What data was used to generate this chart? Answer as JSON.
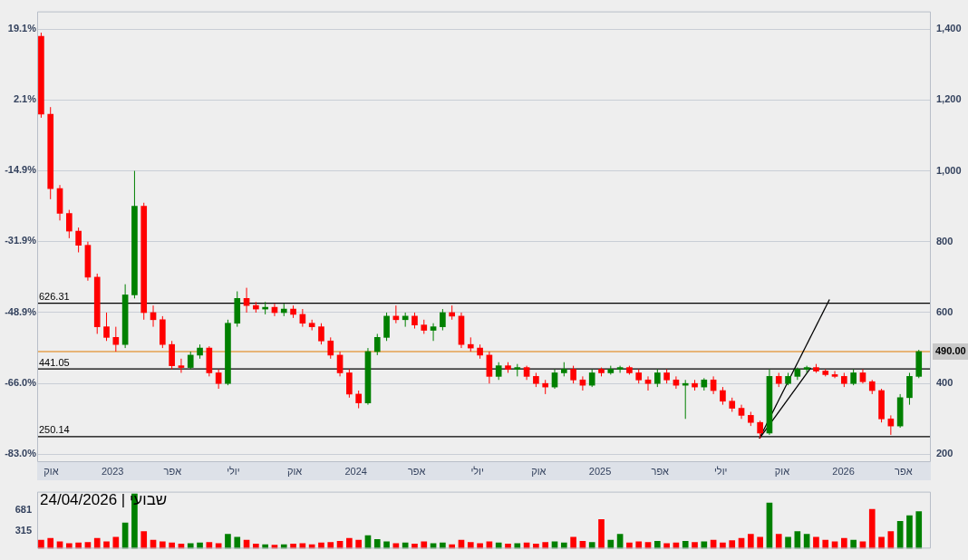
{
  "chart_data": [
    {
      "type": "candlestick",
      "x": [
        "2022-09-16",
        "2022-09-30",
        "2022-10-14",
        "2022-10-28",
        "2022-11-11",
        "2022-11-25",
        "2022-12-09",
        "2022-12-23",
        "2023-01-06",
        "2023-01-20",
        "2023-02-03",
        "2023-02-17",
        "2023-03-03",
        "2023-03-17",
        "2023-03-31",
        "2023-04-14",
        "2023-04-28",
        "2023-05-12",
        "2023-05-26",
        "2023-06-09",
        "2023-06-23",
        "2023-07-07",
        "2023-07-21",
        "2023-08-04",
        "2023-08-18",
        "2023-09-01",
        "2023-09-15",
        "2023-09-29",
        "2023-10-13",
        "2023-10-27",
        "2023-11-10",
        "2023-11-24",
        "2023-12-08",
        "2023-12-22",
        "2024-01-05",
        "2024-01-19",
        "2024-02-02",
        "2024-02-16",
        "2024-03-01",
        "2024-03-15",
        "2024-03-29",
        "2024-04-12",
        "2024-04-26",
        "2024-05-10",
        "2024-05-24",
        "2024-06-07",
        "2024-06-21",
        "2024-07-05",
        "2024-07-19",
        "2024-08-02",
        "2024-08-16",
        "2024-08-30",
        "2024-09-13",
        "2024-09-27",
        "2024-10-11",
        "2024-10-25",
        "2024-11-08",
        "2024-11-22",
        "2024-12-06",
        "2024-12-20",
        "2025-01-03",
        "2025-01-17",
        "2025-01-31",
        "2025-02-14",
        "2025-02-28",
        "2025-03-14",
        "2025-03-28",
        "2025-04-11",
        "2025-04-25",
        "2025-05-09",
        "2025-05-23",
        "2025-06-06",
        "2025-06-20",
        "2025-07-04",
        "2025-07-18",
        "2025-08-01",
        "2025-08-15",
        "2025-08-29",
        "2025-09-12",
        "2025-09-26",
        "2025-10-10",
        "2025-10-24",
        "2025-11-07",
        "2025-11-21",
        "2025-12-05",
        "2025-12-19",
        "2026-01-02",
        "2026-01-16",
        "2026-01-30",
        "2026-02-13",
        "2026-02-27",
        "2026-03-13",
        "2026-03-27",
        "2026-04-10",
        "2026-04-24"
      ],
      "ohlc": [
        [
          1380,
          1390,
          1150,
          1160
        ],
        [
          1160,
          1180,
          920,
          950
        ],
        [
          950,
          960,
          860,
          880
        ],
        [
          880,
          890,
          810,
          830
        ],
        [
          830,
          840,
          770,
          790
        ],
        [
          790,
          800,
          690,
          700
        ],
        [
          700,
          710,
          540,
          560
        ],
        [
          560,
          600,
          520,
          530
        ],
        [
          530,
          560,
          490,
          510
        ],
        [
          510,
          680,
          500,
          650
        ],
        [
          650,
          1000,
          640,
          900
        ],
        [
          900,
          910,
          580,
          600
        ],
        [
          600,
          620,
          560,
          580
        ],
        [
          580,
          590,
          500,
          510
        ],
        [
          510,
          520,
          440,
          450
        ],
        [
          450,
          470,
          430,
          445
        ],
        [
          445,
          490,
          440,
          480
        ],
        [
          480,
          510,
          470,
          500
        ],
        [
          500,
          505,
          420,
          430
        ],
        [
          430,
          440,
          385,
          400
        ],
        [
          400,
          580,
          395,
          570
        ],
        [
          570,
          660,
          560,
          640
        ],
        [
          640,
          670,
          600,
          620
        ],
        [
          620,
          630,
          600,
          610
        ],
        [
          610,
          630,
          595,
          615
        ],
        [
          615,
          625,
          590,
          600
        ],
        [
          600,
          625,
          590,
          610
        ],
        [
          610,
          620,
          585,
          595
        ],
        [
          595,
          610,
          560,
          570
        ],
        [
          570,
          580,
          550,
          560
        ],
        [
          560,
          570,
          510,
          520
        ],
        [
          520,
          530,
          470,
          480
        ],
        [
          480,
          490,
          420,
          430
        ],
        [
          430,
          440,
          360,
          370
        ],
        [
          370,
          380,
          330,
          345
        ],
        [
          345,
          500,
          340,
          490
        ],
        [
          490,
          540,
          480,
          530
        ],
        [
          530,
          600,
          520,
          590
        ],
        [
          590,
          620,
          570,
          580
        ],
        [
          580,
          600,
          560,
          590
        ],
        [
          590,
          600,
          555,
          565
        ],
        [
          565,
          580,
          540,
          550
        ],
        [
          550,
          570,
          520,
          560
        ],
        [
          560,
          610,
          550,
          600
        ],
        [
          600,
          620,
          580,
          590
        ],
        [
          590,
          600,
          500,
          510
        ],
        [
          510,
          530,
          490,
          500
        ],
        [
          500,
          510,
          470,
          480
        ],
        [
          480,
          490,
          400,
          420
        ],
        [
          420,
          460,
          410,
          450
        ],
        [
          450,
          460,
          430,
          440
        ],
        [
          440,
          455,
          420,
          445
        ],
        [
          445,
          450,
          410,
          420
        ],
        [
          420,
          430,
          390,
          400
        ],
        [
          400,
          410,
          370,
          390
        ],
        [
          390,
          440,
          385,
          430
        ],
        [
          430,
          460,
          420,
          440
        ],
        [
          440,
          450,
          400,
          410
        ],
        [
          410,
          420,
          380,
          395
        ],
        [
          395,
          440,
          390,
          430
        ],
        [
          440,
          445,
          420,
          430
        ],
        [
          430,
          450,
          425,
          440
        ],
        [
          440,
          450,
          430,
          445
        ],
        [
          445,
          450,
          425,
          430
        ],
        [
          430,
          440,
          400,
          410
        ],
        [
          410,
          420,
          380,
          400
        ],
        [
          400,
          440,
          390,
          430
        ],
        [
          430,
          440,
          400,
          410
        ],
        [
          410,
          420,
          385,
          395
        ],
        [
          395,
          410,
          300,
          400
        ],
        [
          400,
          410,
          380,
          390
        ],
        [
          390,
          415,
          380,
          410
        ],
        [
          410,
          420,
          370,
          380
        ],
        [
          380,
          390,
          340,
          350
        ],
        [
          350,
          360,
          320,
          330
        ],
        [
          330,
          340,
          300,
          310
        ],
        [
          310,
          320,
          280,
          290
        ],
        [
          290,
          295,
          245,
          260
        ],
        [
          260,
          440,
          255,
          420
        ],
        [
          420,
          430,
          390,
          400
        ],
        [
          400,
          430,
          395,
          420
        ],
        [
          420,
          445,
          410,
          440
        ],
        [
          440,
          450,
          430,
          445
        ],
        [
          445,
          455,
          430,
          435
        ],
        [
          435,
          440,
          420,
          425
        ],
        [
          425,
          435,
          415,
          420
        ],
        [
          420,
          430,
          390,
          400
        ],
        [
          400,
          440,
          395,
          430
        ],
        [
          430,
          440,
          400,
          405
        ],
        [
          405,
          410,
          370,
          380
        ],
        [
          380,
          385,
          290,
          300
        ],
        [
          300,
          310,
          255,
          280
        ],
        [
          280,
          370,
          275,
          360
        ],
        [
          360,
          430,
          340,
          420
        ],
        [
          420,
          495,
          415,
          490
        ]
      ],
      "colors": [
        "#ff0000",
        "#ff0000",
        "#ff0000",
        "#ff0000",
        "#ff0000",
        "#ff0000",
        "#ff0000",
        "#ff0000",
        "#ff0000",
        "#008000",
        "#008000",
        "#ff0000",
        "#ff0000",
        "#ff0000",
        "#ff0000",
        "#ff0000",
        "#008000",
        "#008000",
        "#ff0000",
        "#ff0000",
        "#008000",
        "#008000",
        "#ff0000",
        "#ff0000",
        "#008000",
        "#ff0000",
        "#008000",
        "#ff0000",
        "#ff0000",
        "#ff0000",
        "#ff0000",
        "#ff0000",
        "#ff0000",
        "#ff0000",
        "#ff0000",
        "#008000",
        "#008000",
        "#008000",
        "#ff0000",
        "#008000",
        "#ff0000",
        "#ff0000",
        "#008000",
        "#008000",
        "#ff0000",
        "#ff0000",
        "#ff0000",
        "#ff0000",
        "#ff0000",
        "#008000",
        "#ff0000",
        "#008000",
        "#ff0000",
        "#ff0000",
        "#ff0000",
        "#008000",
        "#008000",
        "#ff0000",
        "#ff0000",
        "#008000",
        "#ff0000",
        "#008000",
        "#008000",
        "#ff0000",
        "#ff0000",
        "#ff0000",
        "#008000",
        "#ff0000",
        "#ff0000",
        "#008000",
        "#ff0000",
        "#008000",
        "#ff0000",
        "#ff0000",
        "#ff0000",
        "#ff0000",
        "#ff0000",
        "#ff0000",
        "#008000",
        "#ff0000",
        "#008000",
        "#008000",
        "#008000",
        "#ff0000",
        "#ff0000",
        "#ff0000",
        "#ff0000",
        "#008000",
        "#ff0000",
        "#ff0000",
        "#ff0000",
        "#ff0000",
        "#008000",
        "#008000",
        "#008000"
      ],
      "series": [
        {
          "type": "line",
          "color": "#000000",
          "x": [
            "2025-08-28",
            "2025-12-11"
          ],
          "values": [
            245,
            637
          ]
        },
        {
          "type": "line",
          "color": "#000000",
          "x": [
            "2025-08-28",
            "2025-11-13"
          ],
          "values": [
            245,
            444
          ]
        }
      ],
      "marker": "none",
      "xlim": [
        "2022-09-10",
        "2026-05-12"
      ],
      "xticks": [
        {
          "value": "2022-10-01",
          "label": "אוק"
        },
        {
          "value": "2023-01-01",
          "label": "2023"
        },
        {
          "value": "2023-04-01",
          "label": "אפר"
        },
        {
          "value": "2023-07-01",
          "label": "יולי"
        },
        {
          "value": "2023-10-01",
          "label": "אוק"
        },
        {
          "value": "2024-01-01",
          "label": "2024"
        },
        {
          "value": "2024-04-01",
          "label": "אפר"
        },
        {
          "value": "2024-07-01",
          "label": "יולי"
        },
        {
          "value": "2024-10-01",
          "label": "אוק"
        },
        {
          "value": "2025-01-01",
          "label": "2025"
        },
        {
          "value": "2025-04-01",
          "label": "אפר"
        },
        {
          "value": "2025-07-01",
          "label": "יולי"
        },
        {
          "value": "2025-10-01",
          "label": "אוק"
        },
        {
          "value": "2026-01-01",
          "label": "2026"
        },
        {
          "value": "2026-04-01",
          "label": "אפר"
        }
      ],
      "ylim": [
        178,
        1450
      ],
      "yticks": [
        200,
        400,
        600,
        800,
        {
          "value": 1000,
          "label": "1,000"
        },
        {
          "value": 1200,
          "label": "1,200"
        },
        {
          "value": 1400,
          "label": "1,400"
        }
      ],
      "y2lim": [
        -84.9,
        23.3
      ],
      "y2ticks": [
        {
          "value": -83.0,
          "label": "-83.0%"
        },
        {
          "value": -66.0,
          "label": "-66.0%"
        },
        {
          "value": -48.9,
          "label": "-48.9%"
        },
        {
          "value": -31.9,
          "label": "-31.9%"
        },
        {
          "value": -14.9,
          "label": "-14.9%"
        },
        {
          "value": 2.1,
          "label": "2.1%"
        },
        {
          "value": 19.1,
          "label": "19.1%"
        }
      ],
      "ref_lines": [
        {
          "axis": "y",
          "value": 626.31,
          "label": "626.31"
        },
        {
          "axis": "y",
          "value": 441.05,
          "label": "441.05"
        },
        {
          "axis": "y",
          "value": 250.14,
          "label": "250.14"
        },
        {
          "axis": "y",
          "value": 490,
          "label": "490.00",
          "color": "#e07b00"
        }
      ],
      "grid": "y",
      "legend": false
    },
    {
      "type": "bar",
      "title": "שבועי | 24/04/2026",
      "x": [
        "2022-09-16",
        "2022-09-30",
        "2022-10-14",
        "2022-10-28",
        "2022-11-11",
        "2022-11-25",
        "2022-12-09",
        "2022-12-23",
        "2023-01-06",
        "2023-01-20",
        "2023-02-03",
        "2023-02-17",
        "2023-03-03",
        "2023-03-17",
        "2023-03-31",
        "2023-04-14",
        "2023-04-28",
        "2023-05-12",
        "2023-05-26",
        "2023-06-09",
        "2023-06-23",
        "2023-07-07",
        "2023-07-21",
        "2023-08-04",
        "2023-08-18",
        "2023-09-01",
        "2023-09-15",
        "2023-09-29",
        "2023-10-13",
        "2023-10-27",
        "2023-11-10",
        "2023-11-24",
        "2023-12-08",
        "2023-12-22",
        "2024-01-05",
        "2024-01-19",
        "2024-02-02",
        "2024-02-16",
        "2024-03-01",
        "2024-03-15",
        "2024-03-29",
        "2024-04-12",
        "2024-04-26",
        "2024-05-10",
        "2024-05-24",
        "2024-06-07",
        "2024-06-21",
        "2024-07-05",
        "2024-07-19",
        "2024-08-02",
        "2024-08-16",
        "2024-08-30",
        "2024-09-13",
        "2024-09-27",
        "2024-10-11",
        "2024-10-25",
        "2024-11-08",
        "2024-11-22",
        "2024-12-06",
        "2024-12-20",
        "2025-01-03",
        "2025-01-17",
        "2025-01-31",
        "2025-02-14",
        "2025-02-28",
        "2025-03-14",
        "2025-03-28",
        "2025-04-11",
        "2025-04-25",
        "2025-05-09",
        "2025-05-23",
        "2025-06-06",
        "2025-06-20",
        "2025-07-04",
        "2025-07-18",
        "2025-08-01",
        "2025-08-15",
        "2025-08-29",
        "2025-09-12",
        "2025-09-26",
        "2025-10-10",
        "2025-10-24",
        "2025-11-07",
        "2025-11-21",
        "2025-12-05",
        "2025-12-19",
        "2026-01-02",
        "2026-01-16",
        "2026-01-30",
        "2026-02-13",
        "2026-02-27",
        "2026-03-13",
        "2026-03-27",
        "2026-04-10",
        "2026-04-24"
      ],
      "values": [
        150,
        180,
        120,
        90,
        100,
        110,
        180,
        120,
        200,
        450,
        960,
        300,
        150,
        120,
        100,
        80,
        90,
        100,
        110,
        90,
        250,
        200,
        150,
        80,
        70,
        60,
        70,
        80,
        90,
        70,
        100,
        110,
        130,
        180,
        150,
        230,
        160,
        120,
        90,
        100,
        80,
        120,
        90,
        100,
        70,
        150,
        110,
        90,
        120,
        100,
        80,
        90,
        100,
        80,
        110,
        120,
        100,
        200,
        130,
        110,
        510,
        150,
        250,
        100,
        120,
        110,
        130,
        90,
        100,
        130,
        110,
        120,
        150,
        100,
        140,
        180,
        250,
        200,
        800,
        250,
        200,
        300,
        250,
        200,
        150,
        120,
        180,
        150,
        120,
        690,
        200,
        300,
        480,
        580,
        650
      ],
      "colors": [
        "#ff0000",
        "#ff0000",
        "#ff0000",
        "#ff0000",
        "#ff0000",
        "#ff0000",
        "#ff0000",
        "#ff0000",
        "#ff0000",
        "#008000",
        "#008000",
        "#ff0000",
        "#ff0000",
        "#ff0000",
        "#ff0000",
        "#ff0000",
        "#008000",
        "#008000",
        "#ff0000",
        "#ff0000",
        "#008000",
        "#008000",
        "#ff0000",
        "#ff0000",
        "#008000",
        "#ff0000",
        "#008000",
        "#ff0000",
        "#ff0000",
        "#ff0000",
        "#ff0000",
        "#ff0000",
        "#ff0000",
        "#ff0000",
        "#ff0000",
        "#008000",
        "#008000",
        "#008000",
        "#ff0000",
        "#008000",
        "#ff0000",
        "#ff0000",
        "#008000",
        "#008000",
        "#ff0000",
        "#ff0000",
        "#ff0000",
        "#ff0000",
        "#ff0000",
        "#008000",
        "#ff0000",
        "#008000",
        "#ff0000",
        "#ff0000",
        "#ff0000",
        "#008000",
        "#008000",
        "#ff0000",
        "#ff0000",
        "#008000",
        "#ff0000",
        "#008000",
        "#008000",
        "#ff0000",
        "#ff0000",
        "#ff0000",
        "#008000",
        "#ff0000",
        "#ff0000",
        "#008000",
        "#ff0000",
        "#008000",
        "#ff0000",
        "#ff0000",
        "#ff0000",
        "#ff0000",
        "#ff0000",
        "#ff0000",
        "#008000",
        "#ff0000",
        "#008000",
        "#008000",
        "#008000",
        "#ff0000",
        "#ff0000",
        "#ff0000",
        "#ff0000",
        "#008000",
        "#ff0000",
        "#ff0000",
        "#ff0000",
        "#ff0000",
        "#008000",
        "#008000",
        "#008000"
      ],
      "xlim": [
        "2022-09-10",
        "2026-05-12"
      ],
      "ylim": [
        0,
        1000
      ],
      "yticks": [
        315,
        681
      ],
      "tick_labels": "y",
      "legend": false
    }
  ]
}
